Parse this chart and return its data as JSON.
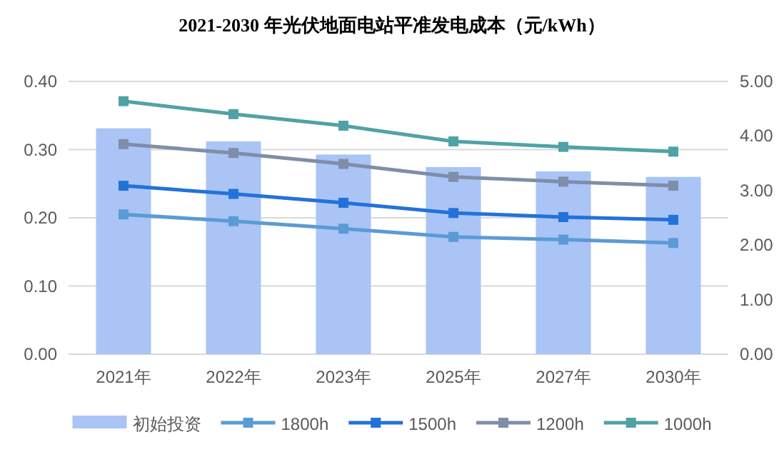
{
  "chart_data": {
    "type": "bar",
    "title": "2021-2030  年光伏地面电站平准发电成本（元/kWh）",
    "categories": [
      "2021年",
      "2022年",
      "2023年",
      "2025年",
      "2027年",
      "2030年"
    ],
    "ylim": [
      0,
      0.4
    ],
    "yticks": [
      {
        "value": 0,
        "label": "0.00"
      },
      {
        "value": 0.1,
        "label": "0.10"
      },
      {
        "value": 0.2,
        "label": "0.20"
      },
      {
        "value": 0.3,
        "label": "0.30"
      },
      {
        "value": 0.4,
        "label": "0.40"
      }
    ],
    "y2lim": [
      0,
      5
    ],
    "y2ticks": [
      {
        "value": 0,
        "label": "0.00"
      },
      {
        "value": 1,
        "label": "1.00"
      },
      {
        "value": 2,
        "label": "2.00"
      },
      {
        "value": 3,
        "label": "3.00"
      },
      {
        "value": 4,
        "label": "4.00"
      },
      {
        "value": 5,
        "label": "5.00"
      }
    ],
    "grid": "y",
    "legend": "bottom",
    "marker": "square",
    "series": [
      {
        "name": "初始投资",
        "axis": "y2",
        "color": "#a9c4f5",
        "values": [
          4.14,
          3.9,
          3.66,
          3.43,
          3.35,
          3.25
        ]
      },
      {
        "name": "1800h",
        "type": "line",
        "color": "#5b9bd5",
        "values": [
          0.205,
          0.195,
          0.184,
          0.172,
          0.168,
          0.163
        ]
      },
      {
        "name": "1500h",
        "type": "line",
        "color": "#2372d9",
        "values": [
          0.247,
          0.235,
          0.222,
          0.207,
          0.201,
          0.197
        ]
      },
      {
        "name": "1200h",
        "type": "line",
        "color": "#7f8ea8",
        "values": [
          0.308,
          0.295,
          0.279,
          0.26,
          0.253,
          0.247
        ]
      },
      {
        "name": "1000h",
        "type": "line",
        "color": "#4fa3a5",
        "values": [
          0.371,
          0.352,
          0.335,
          0.312,
          0.304,
          0.297
        ]
      }
    ]
  }
}
